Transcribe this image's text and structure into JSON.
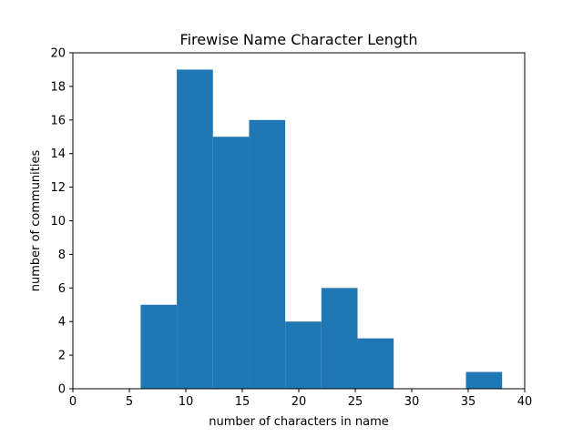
{
  "chart_data": {
    "type": "bar",
    "title": "Firewise Name Character Length",
    "xlabel": "number of characters in name",
    "ylabel": "number of communities",
    "xlim": [
      0,
      40
    ],
    "ylim": [
      0,
      20
    ],
    "xticks": [
      0,
      5,
      10,
      15,
      20,
      25,
      30,
      35,
      40
    ],
    "yticks": [
      0,
      2,
      4,
      6,
      8,
      10,
      12,
      14,
      16,
      18,
      20
    ],
    "bins": [
      {
        "start": 6.0,
        "end": 9.2,
        "count": 5
      },
      {
        "start": 9.2,
        "end": 12.4,
        "count": 19
      },
      {
        "start": 12.4,
        "end": 15.6,
        "count": 15
      },
      {
        "start": 15.6,
        "end": 18.8,
        "count": 16
      },
      {
        "start": 18.8,
        "end": 22.0,
        "count": 4
      },
      {
        "start": 22.0,
        "end": 25.2,
        "count": 6
      },
      {
        "start": 25.2,
        "end": 28.4,
        "count": 3
      },
      {
        "start": 28.4,
        "end": 31.6,
        "count": 0
      },
      {
        "start": 31.6,
        "end": 34.8,
        "count": 0
      },
      {
        "start": 34.8,
        "end": 38.0,
        "count": 1
      }
    ],
    "bar_color": "#1f77b4",
    "grid": false,
    "legend": "none"
  }
}
